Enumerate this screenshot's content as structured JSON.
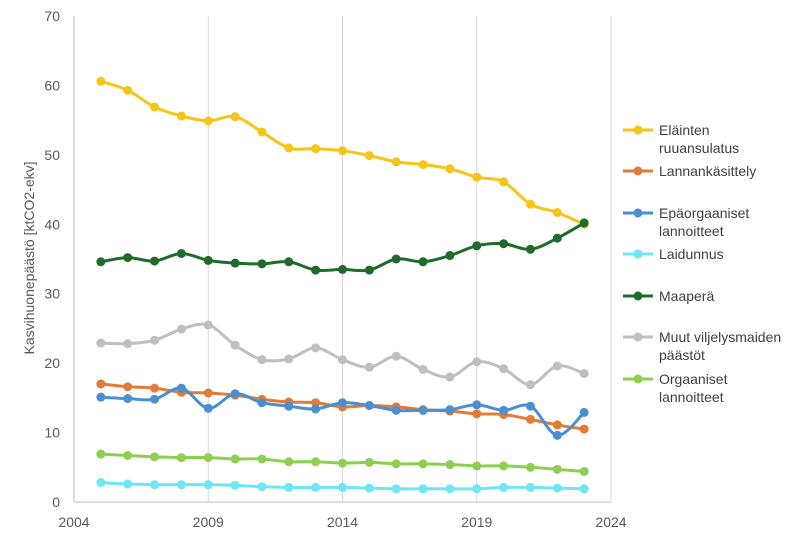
{
  "chart_data": {
    "type": "line",
    "title": "",
    "xlabel": "",
    "ylabel": "Kasvihuonepäästö [ktCO2-ekv]",
    "xlim": [
      2004,
      2024
    ],
    "ylim": [
      0,
      70
    ],
    "xticks": [
      2004,
      2009,
      2014,
      2019,
      2024
    ],
    "yticks": [
      0,
      10,
      20,
      30,
      40,
      50,
      60,
      70
    ],
    "grid": "vertical",
    "legend_position": "right",
    "x": [
      2005,
      2006,
      2007,
      2008,
      2009,
      2010,
      2011,
      2012,
      2013,
      2014,
      2015,
      2016,
      2017,
      2018,
      2019,
      2020,
      2021,
      2022,
      2023
    ],
    "series": [
      {
        "name": "Eläinten ruuansulatus",
        "legend_lines": [
          "Eläinten",
          "ruuansulatus"
        ],
        "color": "#f5c518",
        "values": [
          60.6,
          59.3,
          56.9,
          55.6,
          54.9,
          55.5,
          53.3,
          51.0,
          50.9,
          50.6,
          49.9,
          49.0,
          48.6,
          48.0,
          46.8,
          46.1,
          42.9,
          41.7,
          40.0
        ]
      },
      {
        "name": "Lannankäsittely",
        "legend_lines": [
          "Lannankäsittely"
        ],
        "color": "#e07b39",
        "values": [
          17.0,
          16.6,
          16.4,
          15.8,
          15.7,
          15.4,
          14.8,
          14.4,
          14.3,
          13.7,
          13.9,
          13.7,
          13.3,
          13.1,
          12.7,
          12.6,
          11.9,
          11.1,
          10.5
        ]
      },
      {
        "name": "Epäorgaaniset lannoitteet",
        "legend_lines": [
          "Epäorgaaniset",
          "lannoitteet"
        ],
        "color": "#4a8fd0",
        "values": [
          15.1,
          14.9,
          14.8,
          16.4,
          13.5,
          15.6,
          14.3,
          13.8,
          13.4,
          14.3,
          13.9,
          13.2,
          13.2,
          13.3,
          14.0,
          13.2,
          13.8,
          9.6,
          12.9
        ]
      },
      {
        "name": "Laidunnus",
        "legend_lines": [
          "Laidunnus"
        ],
        "color": "#6ee7f5",
        "values": [
          2.8,
          2.6,
          2.5,
          2.5,
          2.5,
          2.4,
          2.2,
          2.1,
          2.1,
          2.1,
          2.0,
          1.9,
          1.9,
          1.9,
          1.9,
          2.1,
          2.1,
          2.0,
          1.9
        ]
      },
      {
        "name": "Maaperä",
        "legend_lines": [
          "Maaperä"
        ],
        "color": "#1f6b2a",
        "values": [
          34.6,
          35.2,
          34.7,
          35.8,
          34.8,
          34.4,
          34.3,
          34.6,
          33.4,
          33.5,
          33.4,
          35.0,
          34.6,
          35.5,
          36.9,
          37.2,
          36.4,
          38.0,
          40.2
        ]
      },
      {
        "name": "Muut viljelysmaiden päästöt",
        "legend_lines": [
          "Muut viljelysmaiden",
          "päästöt"
        ],
        "color": "#bfbfbf",
        "values": [
          22.9,
          22.8,
          23.3,
          24.9,
          25.5,
          22.6,
          20.5,
          20.6,
          22.2,
          20.5,
          19.4,
          21.0,
          19.1,
          18.0,
          20.2,
          19.2,
          16.9,
          19.6,
          18.5
        ]
      },
      {
        "name": "Orgaaniset lannoitteet",
        "legend_lines": [
          "Orgaaniset",
          "lannoitteet"
        ],
        "color": "#8fcf4f",
        "values": [
          6.9,
          6.7,
          6.5,
          6.4,
          6.4,
          6.2,
          6.2,
          5.8,
          5.8,
          5.6,
          5.7,
          5.5,
          5.5,
          5.4,
          5.2,
          5.2,
          5.0,
          4.7,
          4.4
        ]
      }
    ]
  }
}
